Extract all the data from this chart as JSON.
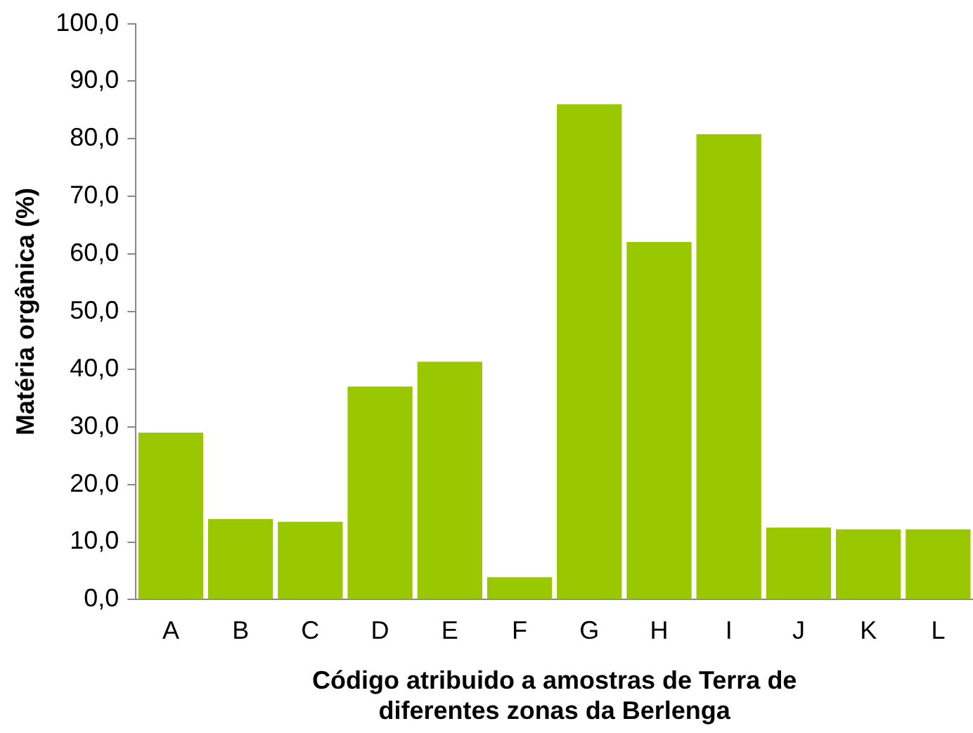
{
  "chart_data": {
    "type": "bar",
    "xlabel": "Código atribuido a amostras de Terra de\ndiferentes zonas da Berlenga",
    "ylabel": "Matéria orgânica (%)",
    "categories": [
      "A",
      "B",
      "C",
      "D",
      "E",
      "F",
      "G",
      "H",
      "I",
      "J",
      "K",
      "L"
    ],
    "values": [
      29.0,
      14.0,
      13.5,
      37.0,
      41.3,
      3.9,
      86.0,
      62.1,
      80.8,
      12.5,
      12.2,
      12.2
    ],
    "color": "#99c700",
    "ylim": [
      0,
      100
    ],
    "yticks": [
      {
        "value": 0,
        "label": "0,0"
      },
      {
        "value": 10,
        "label": "10,0"
      },
      {
        "value": 20,
        "label": "20,0"
      },
      {
        "value": 30,
        "label": "30,0"
      },
      {
        "value": 40,
        "label": "40,0"
      },
      {
        "value": 50,
        "label": "50,0"
      },
      {
        "value": 60,
        "label": "60,0"
      },
      {
        "value": 70,
        "label": "70,0"
      },
      {
        "value": 80,
        "label": "80,0"
      },
      {
        "value": 90,
        "label": "90,0"
      },
      {
        "value": 100,
        "label": "100,0"
      }
    ],
    "grid": false,
    "legend": false
  }
}
